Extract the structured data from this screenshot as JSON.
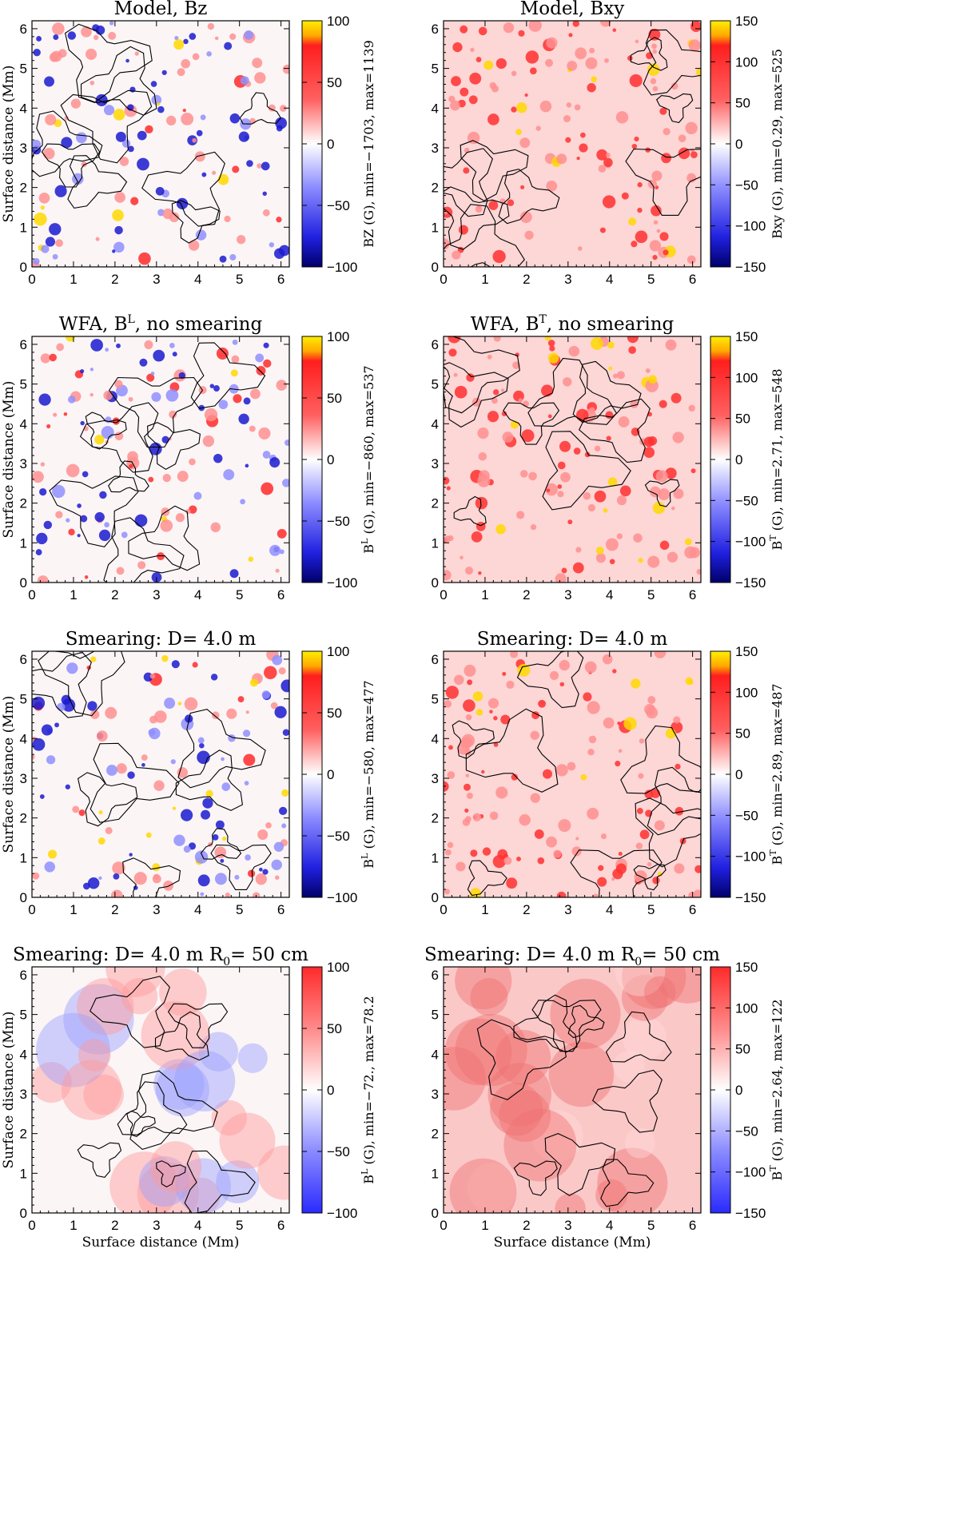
{
  "figure": {
    "xlabel": "Surface distance (Mm)",
    "ylabel": "Surface distance (Mm)",
    "x_ticks": [
      0,
      1,
      2,
      3,
      4,
      5,
      6
    ],
    "y_ticks": [
      0,
      1,
      2,
      3,
      4,
      5,
      6
    ]
  },
  "chart_data": [
    {
      "type": "heatmap",
      "id": "r0c0",
      "title": "Model,    Bz",
      "xlabel": "",
      "ylabel": "Surface distance (Mm)",
      "xlim": [
        0,
        6.2
      ],
      "ylim": [
        0,
        6.2
      ],
      "colorbar": {
        "label": "BZ (G), min=−1703, max=1139",
        "range": [
          -100,
          100
        ],
        "ticks": [
          100,
          50,
          0,
          -50,
          -100
        ],
        "scheme": "blue-white-red-yellow"
      },
      "min": -1703,
      "max": 1139,
      "seed": 11
    },
    {
      "type": "heatmap",
      "id": "r0c1",
      "title": "Model,    Bxy",
      "xlabel": "",
      "ylabel": "",
      "xlim": [
        0,
        6.2
      ],
      "ylim": [
        0,
        6.2
      ],
      "colorbar": {
        "label": "Bxy (G), min=0.29, max=525",
        "range": [
          -150,
          150
        ],
        "ticks": [
          150,
          100,
          50,
          0,
          -50,
          -100,
          -150
        ],
        "scheme": "blue-white-red-yellow"
      },
      "min": 0.29,
      "max": 525,
      "seed": 12
    },
    {
      "type": "heatmap",
      "id": "r1c0",
      "title": "WFA, B",
      "title_sup": "L",
      "title_rest": ", no smearing",
      "xlabel": "",
      "ylabel": "Surface distance (Mm)",
      "xlim": [
        0,
        6.2
      ],
      "ylim": [
        0,
        6.2
      ],
      "colorbar": {
        "label_sym": "B",
        "label_sup": "L",
        "label_rest": " (G), min=−860, max=537",
        "range": [
          -100,
          100
        ],
        "ticks": [
          100,
          50,
          0,
          -50,
          -100
        ],
        "scheme": "blue-white-red-yellow"
      },
      "min": -860,
      "max": 537,
      "seed": 21
    },
    {
      "type": "heatmap",
      "id": "r1c1",
      "title": "WFA, B",
      "title_sup": "T",
      "title_rest": ", no smearing",
      "xlabel": "",
      "ylabel": "",
      "xlim": [
        0,
        6.2
      ],
      "ylim": [
        0,
        6.2
      ],
      "colorbar": {
        "label_sym": "B",
        "label_sup": "T",
        "label_rest": " (G), min=2.71, max=548",
        "range": [
          -150,
          150
        ],
        "ticks": [
          150,
          100,
          50,
          0,
          -50,
          -100,
          -150
        ],
        "scheme": "blue-white-red-yellow"
      },
      "min": 2.71,
      "max": 548,
      "seed": 22
    },
    {
      "type": "heatmap",
      "id": "r2c0",
      "title": "Smearing: D= 4.0 m",
      "xlabel": "",
      "ylabel": "Surface distance (Mm)",
      "xlim": [
        0,
        6.2
      ],
      "ylim": [
        0,
        6.2
      ],
      "colorbar": {
        "label_sym": "B",
        "label_sup": "L",
        "label_rest": " (G), min=−580, max=477",
        "range": [
          -100,
          100
        ],
        "ticks": [
          100,
          50,
          0,
          -50,
          -100
        ],
        "scheme": "blue-white-red-yellow"
      },
      "min": -580,
      "max": 477,
      "seed": 31
    },
    {
      "type": "heatmap",
      "id": "r2c1",
      "title": "Smearing: D= 4.0 m",
      "xlabel": "",
      "ylabel": "",
      "xlim": [
        0,
        6.2
      ],
      "ylim": [
        0,
        6.2
      ],
      "colorbar": {
        "label_sym": "B",
        "label_sup": "T",
        "label_rest": " (G), min=2.89, max=487",
        "range": [
          -150,
          150
        ],
        "ticks": [
          150,
          100,
          50,
          0,
          -50,
          -100,
          -150
        ],
        "scheme": "blue-white-red-yellow"
      },
      "min": 2.89,
      "max": 487,
      "seed": 32
    },
    {
      "type": "heatmap",
      "id": "r3c0",
      "title": "Smearing: D= 4.0 m R",
      "title_sub": "0",
      "title_rest": "= 50 cm",
      "xlabel": "Surface distance (Mm)",
      "ylabel": "Surface distance (Mm)",
      "xlim": [
        0,
        6.2
      ],
      "ylim": [
        0,
        6.2
      ],
      "colorbar": {
        "label_sym": "B",
        "label_sup": "L",
        "label_rest": " (G), min=−72., max=78.2",
        "range": [
          -100,
          100
        ],
        "ticks": [
          100,
          50,
          0,
          -50,
          -100
        ],
        "scheme": "blue-white-red"
      },
      "min": -72.0,
      "max": 78.2,
      "seed": 41
    },
    {
      "type": "heatmap",
      "id": "r3c1",
      "title": "Smearing: D= 4.0 m R",
      "title_sub": "0",
      "title_rest": "= 50 cm",
      "xlabel": "Surface distance (Mm)",
      "ylabel": "",
      "xlim": [
        0,
        6.2
      ],
      "ylim": [
        0,
        6.2
      ],
      "colorbar": {
        "label_sym": "B",
        "label_sup": "T",
        "label_rest": " (G), min=2.64, max=122",
        "range": [
          -150,
          150
        ],
        "ticks": [
          150,
          100,
          50,
          0,
          -50,
          -100,
          -150
        ],
        "scheme": "blue-white-red"
      },
      "min": 2.64,
      "max": 122,
      "seed": 42
    }
  ]
}
